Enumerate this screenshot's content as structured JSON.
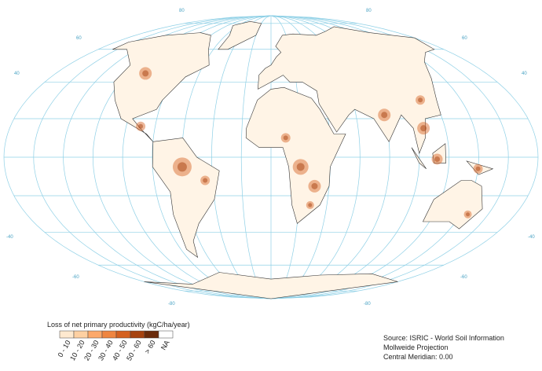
{
  "map": {
    "graticule_labels": [
      "80",
      "80",
      "60",
      "60",
      "40",
      "40",
      "-40",
      "-40",
      "-60",
      "-60",
      "-80",
      "-80"
    ],
    "legend": {
      "title": "Loss of net primary productivity (kgC/ha/year)",
      "items": [
        {
          "label": "0 - 10",
          "color": "#fee9cf"
        },
        {
          "label": "10 - 20",
          "color": "#fdd0a2"
        },
        {
          "label": "20 - 30",
          "color": "#fca86a"
        },
        {
          "label": "30 - 40",
          "color": "#ef8540"
        },
        {
          "label": "40 - 50",
          "color": "#d4601f"
        },
        {
          "label": "50 - 60",
          "color": "#a6420f"
        },
        {
          "label": "> 60",
          "color": "#6a2a0a"
        },
        {
          "label": "NA",
          "color": "#ffffff"
        }
      ]
    },
    "source": [
      "Source: ISRIC - World Soil Information",
      "Mollweide Projection",
      "Central Meridian: 0.00"
    ]
  }
}
